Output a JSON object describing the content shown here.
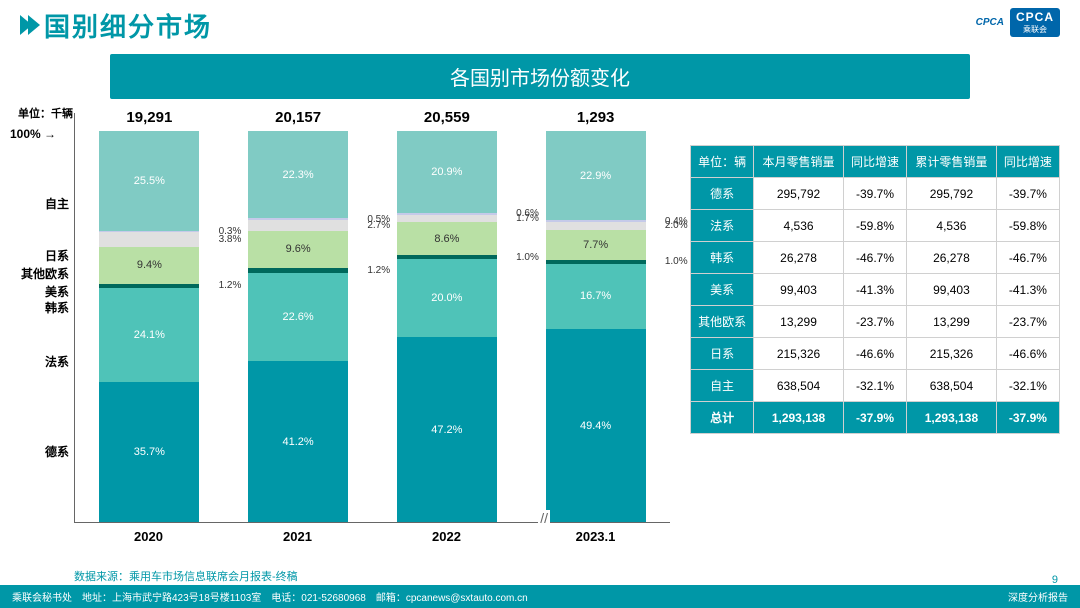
{
  "title": "国别细分市场",
  "banner": "各国别市场份额变化",
  "unit_label": "单位：千辆",
  "pct100": "100% →",
  "logos": {
    "cpca": "CPCA",
    "cpca_cn": "乘联会"
  },
  "chart": {
    "type": "stacked-bar-100pct",
    "categories": [
      "自主",
      "日系",
      "其他欧系",
      "美系",
      "韩系",
      "法系",
      "德系"
    ],
    "category_colors": [
      "#0097a7",
      "#4fc3b8",
      "#00695c",
      "#b9e0a5",
      "#e0e0e0",
      "#c5cae9",
      "#80cbc4"
    ],
    "cat_label_tops": [
      300,
      210,
      156,
      140,
      122,
      104,
      52
    ],
    "years": [
      "2020",
      "2021",
      "2022",
      "2023.1"
    ],
    "totals": [
      "19,291",
      "20,157",
      "20,559",
      "1,293"
    ],
    "bars": [
      {
        "vals": [
          35.7,
          24.1,
          1.2,
          9.4,
          3.8,
          0.3,
          25.5
        ],
        "labels": [
          "35.7%",
          "24.1%",
          "1.2%",
          "9.4%",
          "3.8%",
          "0.3%",
          "25.5%"
        ]
      },
      {
        "vals": [
          41.2,
          22.6,
          1.2,
          9.6,
          2.7,
          0.5,
          22.3
        ],
        "labels": [
          "41.2%",
          "22.6%",
          "1.2%",
          "9.6%",
          "2.7%",
          "0.5%",
          "22.3%"
        ]
      },
      {
        "vals": [
          47.2,
          20.0,
          1.0,
          8.6,
          1.7,
          0.6,
          20.9
        ],
        "labels": [
          "47.2%",
          "20.0%",
          "1.0%",
          "8.6%",
          "1.7%",
          "0.6%",
          "20.9%"
        ]
      },
      {
        "vals": [
          49.4,
          16.7,
          1.0,
          7.7,
          2.0,
          0.4,
          22.9
        ],
        "labels": [
          "49.4%",
          "16.7%",
          "1.0%",
          "7.7%",
          "2.0%",
          "0.4%",
          "22.9%"
        ]
      }
    ],
    "tiny_threshold": 4.0
  },
  "source": "数据来源：乘用车市场信息联席会月报表-终稿",
  "table": {
    "unit": "单位：辆",
    "headers": [
      "本月零售销量",
      "同比增速",
      "累计零售销量",
      "同比增速"
    ],
    "rows": [
      {
        "name": "德系",
        "cells": [
          "295,792",
          "-39.7%",
          "295,792",
          "-39.7%"
        ]
      },
      {
        "name": "法系",
        "cells": [
          "4,536",
          "-59.8%",
          "4,536",
          "-59.8%"
        ]
      },
      {
        "name": "韩系",
        "cells": [
          "26,278",
          "-46.7%",
          "26,278",
          "-46.7%"
        ]
      },
      {
        "name": "美系",
        "cells": [
          "99,403",
          "-41.3%",
          "99,403",
          "-41.3%"
        ]
      },
      {
        "name": "其他欧系",
        "cells": [
          "13,299",
          "-23.7%",
          "13,299",
          "-23.7%"
        ]
      },
      {
        "name": "日系",
        "cells": [
          "215,326",
          "-46.6%",
          "215,326",
          "-46.6%"
        ]
      },
      {
        "name": "自主",
        "cells": [
          "638,504",
          "-32.1%",
          "638,504",
          "-32.1%"
        ]
      }
    ],
    "total": {
      "name": "总计",
      "cells": [
        "1,293,138",
        "-37.9%",
        "1,293,138",
        "-37.9%"
      ]
    }
  },
  "footer": {
    "left": "乘联会秘书处　地址：上海市武宁路423号18号楼1103室　电话：021-52680968　邮箱：cpcanews@sxtauto.com.cn",
    "right": "深度分析报告"
  },
  "page_number": "9"
}
